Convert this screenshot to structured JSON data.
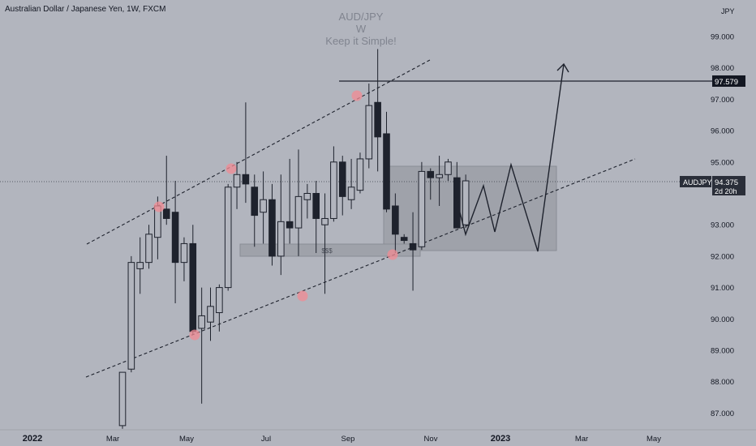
{
  "header": {
    "symbol_title": "Australian Dollar / Japanese Yen, 1W, FXCM"
  },
  "watermark": {
    "line1": "AUD/JPY",
    "line2": "W",
    "line3": "Keep it Simple!"
  },
  "price_axis": {
    "currency": "JPY",
    "ticks": [
      "99.000",
      "98.000",
      "97.000",
      "96.000",
      "95.000",
      "93.000",
      "92.000",
      "91.000",
      "90.000",
      "89.000",
      "88.000",
      "87.000"
    ],
    "tick_values": [
      99,
      98,
      97,
      96,
      95,
      93,
      92,
      91,
      90,
      89,
      88,
      87
    ],
    "last_price_label": "94.375",
    "last_price": 94.375,
    "symbol_tag": "AUDJPY",
    "countdown": "2d 20h",
    "level_label": "97.579",
    "level": 97.579
  },
  "time_axis": {
    "labels": [
      "2022",
      "Mar",
      "May",
      "Jul",
      "Sep",
      "Nov",
      "2023",
      "Mar",
      "May"
    ]
  },
  "annotations": {
    "liquidity_label": "$$$"
  },
  "colors": {
    "background": "#b2b5be",
    "candle": "#1e222d",
    "marker": "#f28b93",
    "text": "#131722"
  },
  "chart_data": {
    "type": "candlestick",
    "title": "Australian Dollar / Japanese Yen, 1W, FXCM",
    "ylabel": "JPY",
    "ylim": [
      86.5,
      100.2
    ],
    "log_scale": false,
    "grid": false,
    "candles": [
      {
        "o": 86.6,
        "h": 88.3,
        "l": 86.5,
        "c": 88.3
      },
      {
        "o": 88.4,
        "h": 92.0,
        "l": 88.3,
        "c": 91.8
      },
      {
        "o": 91.6,
        "h": 92.6,
        "l": 90.8,
        "c": 91.8
      },
      {
        "o": 91.8,
        "h": 93.0,
        "l": 91.6,
        "c": 92.7
      },
      {
        "o": 92.6,
        "h": 93.9,
        "l": 91.9,
        "c": 93.6
      },
      {
        "o": 93.5,
        "h": 95.2,
        "l": 93.0,
        "c": 93.2
      },
      {
        "o": 93.4,
        "h": 94.4,
        "l": 90.5,
        "c": 91.8
      },
      {
        "o": 91.8,
        "h": 92.6,
        "l": 91.2,
        "c": 92.4
      },
      {
        "o": 92.4,
        "h": 93.0,
        "l": 89.5,
        "c": 89.6
      },
      {
        "o": 89.7,
        "h": 91.0,
        "l": 87.3,
        "c": 90.1
      },
      {
        "o": 89.9,
        "h": 91.0,
        "l": 89.3,
        "c": 90.4
      },
      {
        "o": 90.2,
        "h": 91.1,
        "l": 89.6,
        "c": 91.0
      },
      {
        "o": 91.0,
        "h": 94.3,
        "l": 90.9,
        "c": 94.2
      },
      {
        "o": 94.2,
        "h": 95.0,
        "l": 93.5,
        "c": 94.6
      },
      {
        "o": 94.6,
        "h": 96.9,
        "l": 93.7,
        "c": 94.3
      },
      {
        "o": 94.2,
        "h": 94.6,
        "l": 92.3,
        "c": 93.3
      },
      {
        "o": 93.4,
        "h": 94.7,
        "l": 92.4,
        "c": 93.8
      },
      {
        "o": 93.8,
        "h": 94.3,
        "l": 91.7,
        "c": 92.0
      },
      {
        "o": 92.0,
        "h": 94.6,
        "l": 91.4,
        "c": 93.1
      },
      {
        "o": 93.1,
        "h": 95.1,
        "l": 92.4,
        "c": 92.9
      },
      {
        "o": 92.9,
        "h": 95.4,
        "l": 92.0,
        "c": 93.9
      },
      {
        "o": 93.8,
        "h": 94.3,
        "l": 93.2,
        "c": 94.0
      },
      {
        "o": 94.0,
        "h": 94.4,
        "l": 92.1,
        "c": 93.2
      },
      {
        "o": 93.0,
        "h": 94.0,
        "l": 90.8,
        "c": 93.2
      },
      {
        "o": 93.2,
        "h": 95.5,
        "l": 93.1,
        "c": 95.0
      },
      {
        "o": 95.0,
        "h": 95.2,
        "l": 93.3,
        "c": 93.9
      },
      {
        "o": 93.8,
        "h": 95.1,
        "l": 93.5,
        "c": 94.2
      },
      {
        "o": 94.1,
        "h": 95.3,
        "l": 94.0,
        "c": 95.1
      },
      {
        "o": 95.1,
        "h": 97.5,
        "l": 94.8,
        "c": 96.8
      },
      {
        "o": 96.9,
        "h": 98.6,
        "l": 94.7,
        "c": 95.8
      },
      {
        "o": 95.9,
        "h": 96.6,
        "l": 93.4,
        "c": 93.5
      },
      {
        "o": 93.6,
        "h": 94.0,
        "l": 92.1,
        "c": 92.7
      },
      {
        "o": 92.6,
        "h": 92.7,
        "l": 92.4,
        "c": 92.5
      },
      {
        "o": 92.4,
        "h": 93.4,
        "l": 90.9,
        "c": 92.2
      },
      {
        "o": 92.3,
        "h": 95.0,
        "l": 92.2,
        "c": 94.7
      },
      {
        "o": 94.7,
        "h": 94.8,
        "l": 93.8,
        "c": 94.5
      },
      {
        "o": 94.5,
        "h": 95.2,
        "l": 93.6,
        "c": 94.6
      },
      {
        "o": 94.6,
        "h": 95.1,
        "l": 94.4,
        "c": 95.0
      },
      {
        "o": 94.5,
        "h": 95.0,
        "l": 92.9,
        "c": 92.9
      },
      {
        "o": 93.0,
        "h": 94.6,
        "l": 92.9,
        "c": 94.4
      }
    ]
  }
}
